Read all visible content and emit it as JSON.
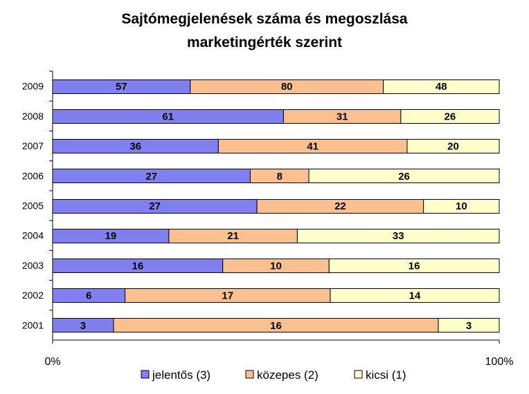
{
  "chart_data": {
    "type": "bar",
    "orientation": "horizontal",
    "stacked": "percent",
    "title_line_1": "Sajtómegjelenések száma és megoszlása",
    "title_line_2": "marketingérték szerint",
    "categories": [
      "2009",
      "2008",
      "2007",
      "2006",
      "2005",
      "2004",
      "2003",
      "2002",
      "2001"
    ],
    "series": [
      {
        "name": "jelentős (3)",
        "color": "#8080f0",
        "values": [
          57,
          61,
          36,
          27,
          27,
          19,
          16,
          6,
          3
        ]
      },
      {
        "name": "közepes (2)",
        "color": "#fac090",
        "values": [
          80,
          31,
          41,
          8,
          22,
          21,
          10,
          17,
          16
        ]
      },
      {
        "name": "kicsi (1)",
        "color": "#ffffcc",
        "values": [
          48,
          26,
          20,
          26,
          10,
          33,
          16,
          14,
          3
        ]
      }
    ],
    "x_tick_labels": [
      "0%",
      "100%"
    ],
    "xlim": [
      0,
      100
    ],
    "legend_position": "bottom",
    "grid": false
  }
}
